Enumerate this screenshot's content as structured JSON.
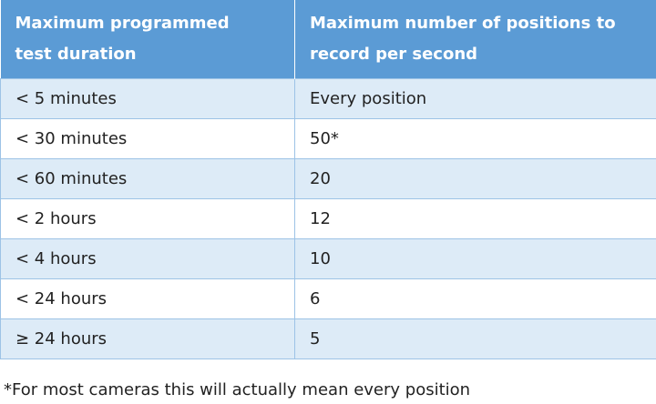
{
  "table": {
    "header": [
      "Maximum programmed test duration",
      "Maximum number of positions to record per second"
    ],
    "rows": [
      [
        "< 5 minutes",
        "Every position"
      ],
      [
        "< 30 minutes",
        "50*"
      ],
      [
        "< 60 minutes",
        "20"
      ],
      [
        "< 2 hours",
        "12"
      ],
      [
        "< 4 hours",
        "10"
      ],
      [
        "< 24 hours",
        "6"
      ],
      [
        "≥ 24 hours",
        "5"
      ]
    ]
  },
  "footnote": "*For most cameras this will actually mean every position"
}
